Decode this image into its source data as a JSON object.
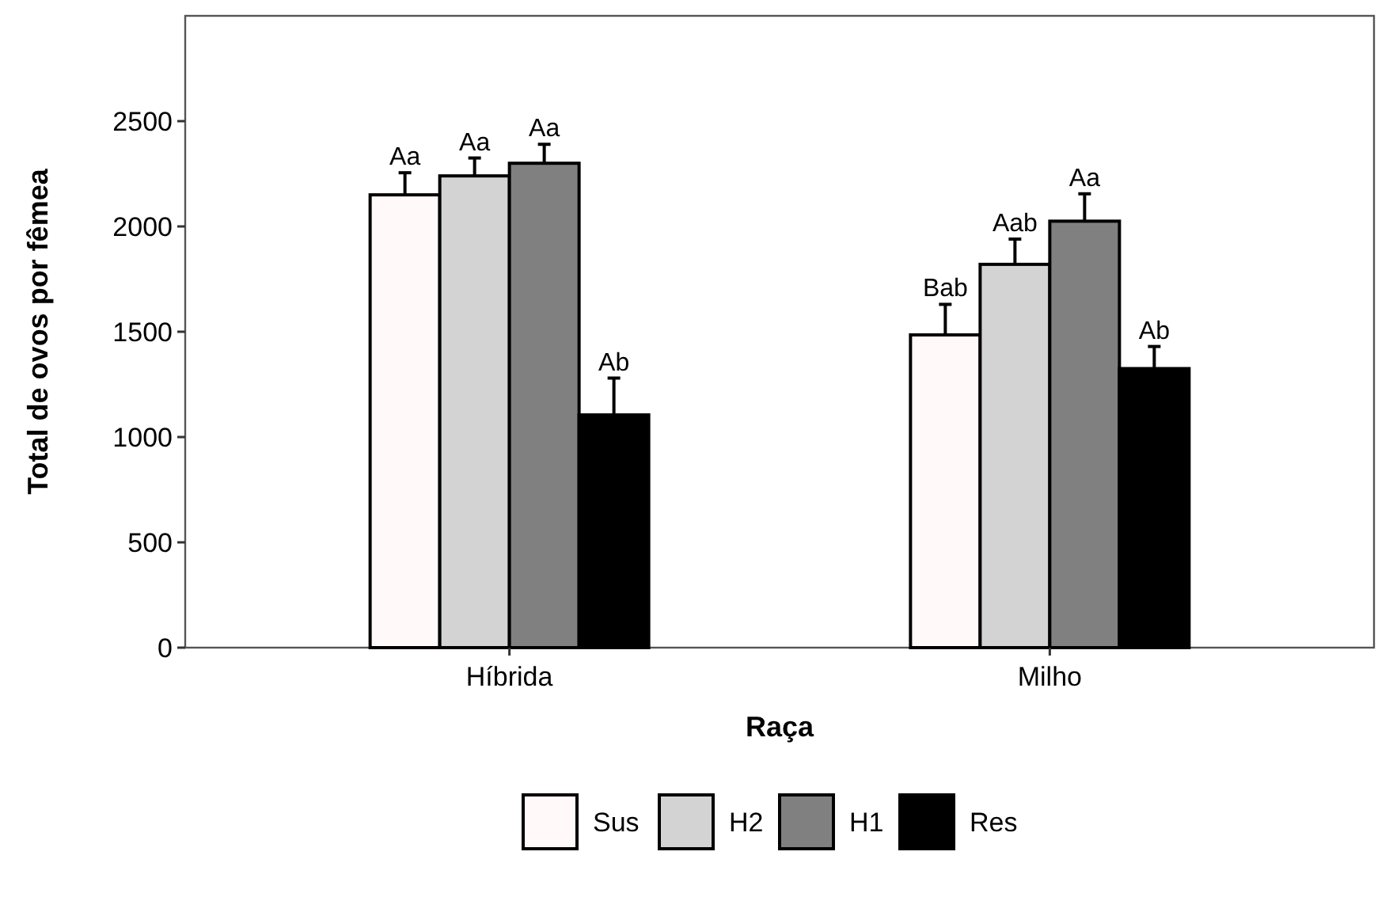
{
  "chart_data": {
    "type": "bar",
    "xlabel": "Raça",
    "ylabel": "Total de ovos por fêmea",
    "categories": [
      "Híbrida",
      "Milho"
    ],
    "series": [
      {
        "name": "Sus",
        "color": "#fff9f9",
        "values": [
          2150,
          1485
        ],
        "errors": [
          [
            2150,
            2255
          ],
          [
            1485,
            1630
          ]
        ]
      },
      {
        "name": "H2",
        "color": "#d3d3d3",
        "values": [
          2240,
          1820
        ],
        "errors": [
          [
            2240,
            2325
          ],
          [
            1820,
            1940
          ]
        ]
      },
      {
        "name": "H1",
        "color": "#808080",
        "values": [
          2300,
          2025
        ],
        "errors": [
          [
            2300,
            2390
          ],
          [
            2025,
            2155
          ]
        ]
      },
      {
        "name": "Res",
        "color": "#000000",
        "values": [
          1105,
          1325
        ],
        "errors": [
          [
            1105,
            1280
          ],
          [
            1325,
            1430
          ]
        ]
      }
    ],
    "ylim": [
      0,
      3000
    ],
    "yticks": [
      0,
      500,
      1000,
      1500,
      2000,
      2500
    ],
    "grid": false,
    "legend": "bottom",
    "annotations": [
      "Aa",
      "Aa",
      "Aa",
      "Ab",
      "Bab",
      "Aab",
      "Aa",
      "Ab"
    ]
  }
}
